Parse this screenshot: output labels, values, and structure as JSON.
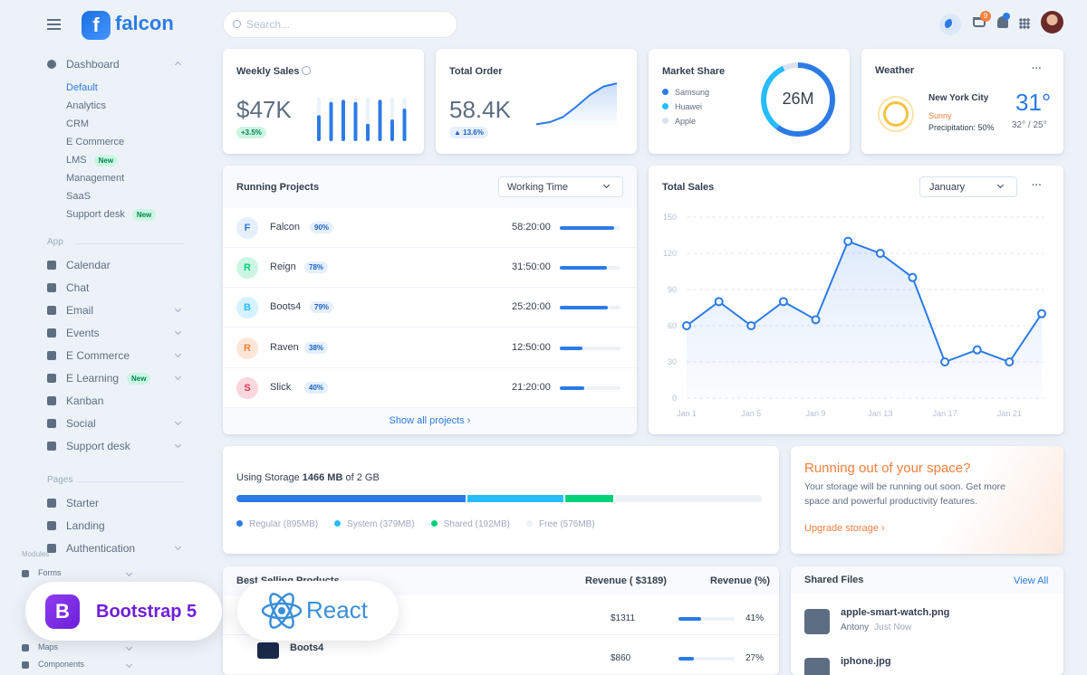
{
  "header": {
    "logo": "falcon",
    "search_placeholder": "Search...",
    "cart_count": "9"
  },
  "sidebar": {
    "dashboard": {
      "label": "Dashboard",
      "items": [
        {
          "label": "Default"
        },
        {
          "label": "Analytics"
        },
        {
          "label": "CRM"
        },
        {
          "label": "E Commerce"
        },
        {
          "label": "LMS",
          "badge": "New"
        },
        {
          "label": "Management"
        },
        {
          "label": "SaaS"
        },
        {
          "label": "Support desk",
          "badge": "New"
        }
      ]
    },
    "sections": [
      {
        "heading": "App",
        "items": [
          {
            "label": "Calendar"
          },
          {
            "label": "Chat"
          },
          {
            "label": "Email",
            "chevron": true
          },
          {
            "label": "Events",
            "chevron": true
          },
          {
            "label": "E Commerce",
            "chevron": true
          },
          {
            "label": "E Learning",
            "badge": "New",
            "chevron": true
          },
          {
            "label": "Kanban"
          },
          {
            "label": "Social",
            "chevron": true
          },
          {
            "label": "Support desk",
            "chevron": true
          }
        ]
      },
      {
        "heading": "Pages",
        "items": [
          {
            "label": "Starter"
          },
          {
            "label": "Landing"
          },
          {
            "label": "Authentication",
            "chevron": true
          }
        ]
      }
    ],
    "modules": {
      "heading": "Modules",
      "items": [
        {
          "label": "Forms"
        },
        {
          "label": "Maps"
        },
        {
          "label": "Components"
        }
      ]
    }
  },
  "overlays": {
    "bootstrap": {
      "icon": "B",
      "label": "Bootstrap 5"
    },
    "react": {
      "label": "React"
    }
  },
  "weekly_sales": {
    "title": "Weekly Sales",
    "value": "$47K",
    "change": "+3.5%",
    "chart": {
      "type": "bar",
      "values": [
        60,
        90,
        95,
        90,
        40,
        95,
        50,
        75
      ],
      "ylim": [
        0,
        100
      ],
      "color": "#2c7be5"
    }
  },
  "total_order": {
    "title": "Total Order",
    "value": "58.4K",
    "change": "13.6%",
    "chart": {
      "type": "line",
      "values": [
        8,
        12,
        22,
        42,
        64,
        80,
        86
      ],
      "ylim": [
        0,
        100
      ],
      "color": "#2c7be5"
    }
  },
  "market_share": {
    "title": "Market Share",
    "total": "26M",
    "chart": {
      "type": "pie",
      "series": [
        {
          "name": "Samsung",
          "color": "#2c7be5",
          "value": 60
        },
        {
          "name": "Huawei",
          "color": "#27bcfd",
          "value": 33
        },
        {
          "name": "Apple",
          "color": "#d8e2ef",
          "value": 7
        }
      ]
    }
  },
  "weather": {
    "title": "Weather",
    "city": "New York City",
    "condition": "Sunny",
    "precipitation": "Precipitation: 50%",
    "temp": "31°",
    "range": "32° / 25°"
  },
  "running_projects": {
    "title": "Running Projects",
    "filter": "Working Time",
    "footer": "Show all projects",
    "rows": [
      {
        "initial": "F",
        "name": "Falcon",
        "percent": 90,
        "percent_label": "90%",
        "time": "58:20:00",
        "color": "#2c7be5",
        "bg": "#e6effc"
      },
      {
        "initial": "R",
        "name": "Reign",
        "percent": 78,
        "percent_label": "78%",
        "time": "31:50:00",
        "color": "#00d27a",
        "bg": "#ccf6e4"
      },
      {
        "initial": "B",
        "name": "Boots4",
        "percent": 79,
        "percent_label": "79%",
        "time": "25:20:00",
        "color": "#27bcfd",
        "bg": "#d4f2ff"
      },
      {
        "initial": "R",
        "name": "Raven",
        "percent": 38,
        "percent_label": "38%",
        "time": "12:50:00",
        "color": "#f5803e",
        "bg": "#fde6d8"
      },
      {
        "initial": "S",
        "name": "Slick",
        "percent": 40,
        "percent_label": "40%",
        "time": "21:20:00",
        "color": "#e63757",
        "bg": "#fad7dd"
      }
    ]
  },
  "total_sales": {
    "title": "Total Sales",
    "month": "January",
    "chart": {
      "type": "line",
      "color": "#2c7be5",
      "grid": true,
      "categories": [
        "Jan 1",
        null,
        "Jan 5",
        null,
        "Jan 9",
        null,
        "Jan 13",
        null,
        "Jan 17",
        null,
        "Jan 21",
        null
      ],
      "values": [
        60,
        80,
        60,
        80,
        65,
        130,
        120,
        100,
        30,
        40,
        30,
        70
      ],
      "ylim": [
        0,
        150
      ],
      "yticks": [
        0,
        30,
        60,
        90,
        120,
        150
      ]
    }
  },
  "storage": {
    "prefix": "Using Storage",
    "used": "1466 MB",
    "suffix": "of 2 GB",
    "segments": [
      {
        "name": "Regular (895MB)",
        "value": 895,
        "color": "#2c7be5"
      },
      {
        "name": "System (379MB)",
        "value": 379,
        "color": "#27bcfd"
      },
      {
        "name": "Shared (192MB)",
        "value": 192,
        "color": "#00d27a"
      },
      {
        "name": "Free (576MB)",
        "value": 576,
        "color": "#edf2f9"
      }
    ]
  },
  "space_alert": {
    "title": "Running out of your space?",
    "body": "Your storage will be running out soon. Get more space and powerful productivity features.",
    "link": "Upgrade storage"
  },
  "best_selling": {
    "title": "Best Selling Products",
    "columns": [
      "Revenue ( $3189)",
      "Revenue (%)"
    ],
    "rows": [
      {
        "revenue": "$1311",
        "percent": 41,
        "percent_label": "41%"
      },
      {
        "name": "Boots4",
        "revenue": "$860",
        "percent": 27,
        "percent_label": "27%"
      }
    ]
  },
  "shared_files": {
    "title": "Shared Files",
    "link": "View All",
    "files": [
      {
        "name": "apple-smart-watch.png",
        "user": "Antony",
        "time": "Just Now"
      },
      {
        "name": "iphone.jpg"
      }
    ]
  }
}
